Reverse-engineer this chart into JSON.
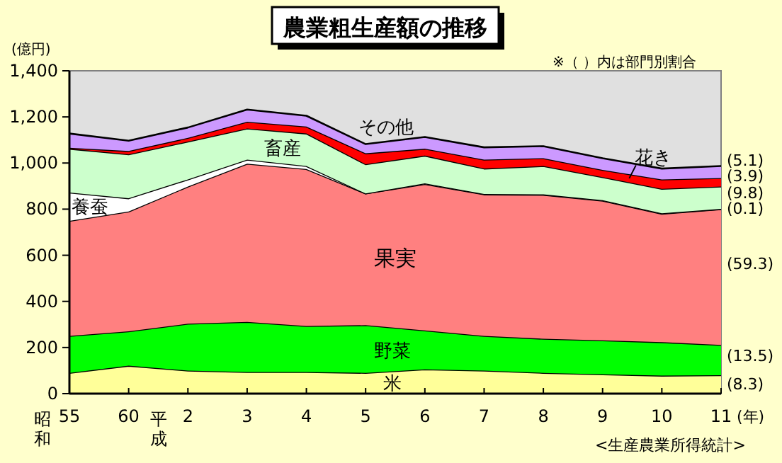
{
  "chart_data": {
    "type": "area",
    "stacked": true,
    "title": "農業粗生産額の推移",
    "ylabel": "(億円)",
    "categories": [
      "55",
      "60",
      "2",
      "3",
      "4",
      "5",
      "6",
      "7",
      "8",
      "9",
      "10",
      "11"
    ],
    "series": [
      {
        "name": "米",
        "color": "#ffff99",
        "values": [
          90,
          121,
          100,
          94,
          94,
          90,
          105,
          100,
          90,
          84,
          78,
          80
        ]
      },
      {
        "name": "野菜",
        "color": "#00ff00",
        "values": [
          160,
          149,
          203,
          217,
          199,
          207,
          169,
          150,
          148,
          147,
          145,
          131
        ]
      },
      {
        "name": "果実",
        "color": "#ff8080",
        "values": [
          499,
          520,
          595,
          686,
          681,
          571,
          635,
          614,
          624,
          606,
          557,
          589
        ]
      },
      {
        "name": "養蚕",
        "color": "#ffffff",
        "values": [
          123,
          57,
          31,
          18,
          13,
          0,
          3,
          2,
          2,
          2,
          2,
          1
        ]
      },
      {
        "name": "畜産",
        "color": "#ccffcc",
        "values": [
          190,
          191,
          164,
          135,
          141,
          127,
          120,
          110,
          123,
          100,
          106,
          97
        ]
      },
      {
        "name": "花き",
        "color": "#ff0000",
        "values": [
          4,
          14,
          16,
          29,
          30,
          47,
          30,
          39,
          34,
          31,
          41,
          37
        ]
      },
      {
        "name": "その他",
        "color": "#cc99ff",
        "values": [
          62,
          45,
          45,
          53,
          47,
          40,
          51,
          53,
          52,
          51,
          47,
          52
        ]
      }
    ],
    "ylim": [
      0,
      1400
    ],
    "yticks": [
      0,
      {
        "value": 200,
        "label": "200"
      },
      {
        "value": 400,
        "label": "400"
      },
      {
        "value": 600,
        "label": "600"
      },
      {
        "value": 800,
        "label": "800"
      },
      {
        "value": 1000,
        "label": "1,000"
      },
      {
        "value": 1200,
        "label": "1,200"
      },
      {
        "value": 1400,
        "label": "1,400"
      }
    ],
    "grid": false,
    "annotations": [
      "※（ ）内は部門別割合",
      "<生産農業所得統計>",
      "昭和",
      "平成",
      "(年)",
      {
        "text": "(8.3)",
        "x": "11",
        "y": 43
      },
      {
        "text": "(13.5)",
        "x": "11",
        "y": 166
      },
      {
        "text": "(59.3)",
        "x": "11",
        "y": 565
      },
      {
        "text": "(0.1)",
        "x": "11",
        "y": 804
      },
      {
        "text": "(9.8)",
        "x": "11",
        "y": 872
      },
      {
        "text": "(3.9)",
        "x": "11",
        "y": 946
      },
      {
        "text": "(5.1)",
        "x": "11",
        "y": 1013
      }
    ]
  }
}
